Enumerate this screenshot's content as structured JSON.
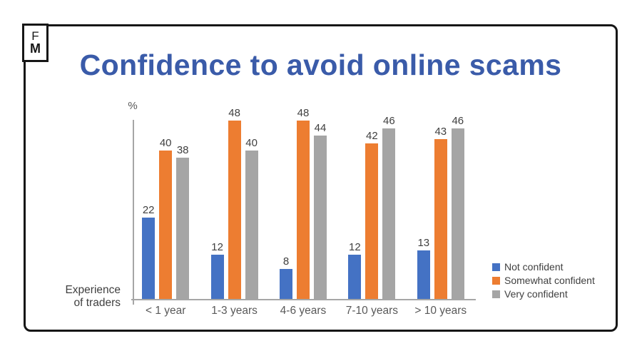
{
  "logo": {
    "line1": "F",
    "line2": "M"
  },
  "colors": {
    "title_text": "#3A5BA9",
    "axis": "#A6A6A6",
    "not_confident": "#4472C4",
    "somewhat_confident": "#ED7D31",
    "very_confident": "#A5A5A5",
    "data_label_text": "#404040",
    "category_label_text": "#595959"
  },
  "chart_data": {
    "type": "bar",
    "title": "Confidence to avoid online scams",
    "y_unit_label": "%",
    "x_axis_label_lines": [
      "Experience",
      "of traders"
    ],
    "categories": [
      "< 1 year",
      "1-3 years",
      "4-6 years",
      "7-10 years",
      "> 10 years"
    ],
    "series": [
      {
        "name": "Not confident",
        "color": "#4472C4",
        "values": [
          22,
          12,
          8,
          12,
          13
        ]
      },
      {
        "name": "Somewhat confident",
        "color": "#ED7D31",
        "values": [
          40,
          48,
          48,
          42,
          43
        ]
      },
      {
        "name": "Very confident",
        "color": "#A5A5A5",
        "values": [
          38,
          40,
          44,
          46,
          46
        ]
      }
    ],
    "ylim": [
      0,
      50
    ],
    "data_labels": true,
    "legend_position": "right",
    "grid": false
  }
}
